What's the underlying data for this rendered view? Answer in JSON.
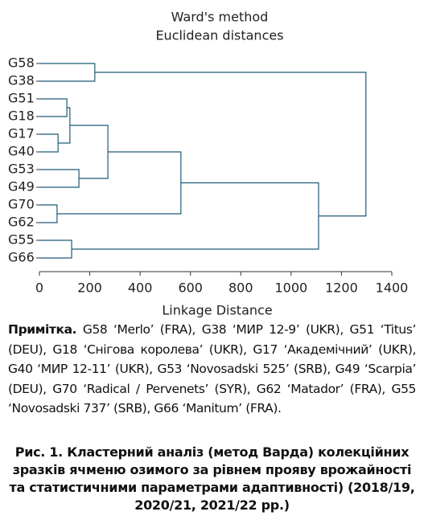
{
  "chart_data": {
    "type": "dendrogram",
    "title": "Ward's method",
    "subtitle": "Euclidean distances",
    "x_label": "Linkage Distance",
    "leaves": [
      "G58",
      "G38",
      "G51",
      "G18",
      "G17",
      "G40",
      "G53",
      "G49",
      "G70",
      "G62",
      "G55",
      "G66"
    ],
    "merges": [
      {
        "a": 0,
        "b": 1,
        "height": 220
      },
      {
        "a": 2,
        "b": 3,
        "height": 109
      },
      {
        "a": 4,
        "b": 5,
        "height": 74
      },
      {
        "a": 13,
        "b": 14,
        "height": 121
      },
      {
        "a": 6,
        "b": 7,
        "height": 157
      },
      {
        "a": 15,
        "b": 16,
        "height": 272
      },
      {
        "a": 8,
        "b": 9,
        "height": 70
      },
      {
        "a": 17,
        "b": 18,
        "height": 562
      },
      {
        "a": 10,
        "b": 11,
        "height": 128
      },
      {
        "a": 19,
        "b": 20,
        "height": 1109
      },
      {
        "a": 12,
        "b": 21,
        "height": 1297
      }
    ],
    "color": "#1f5a78",
    "xlim": [
      0,
      1400
    ],
    "xticks": [
      0,
      200,
      400,
      600,
      800,
      1000,
      1200,
      1400
    ]
  },
  "note": {
    "label": "Примітка.",
    "text": "G58 ‘Merlo’ (FRA), G38 ‘МИР 12-9’ (UKR), G51 ‘Titus’ (DEU), G18 ‘Снігова королева’ (UKR), G17 ‘Академічний’ (UKR), G40 ‘МИР 12-11’ (UKR), G53 ‘Novosadski 525’ (SRB), G49 ‘Scarpia’ (DEU), G70 ‘Radical / Pervenets’ (SYR), G62 ‘Matador’ (FRA), G55 ‘Novosadski 737’ (SRB), G66 ‘Manitum’ (FRA)."
  },
  "caption": "Рис. 1. Кластерний аналіз (метод Варда) колекційних зразків ячменю озимого за рівнем прояву врожайності та статистичними параметрами адаптивності) (2018/19, 2020/21, 2021/22 рр.)"
}
